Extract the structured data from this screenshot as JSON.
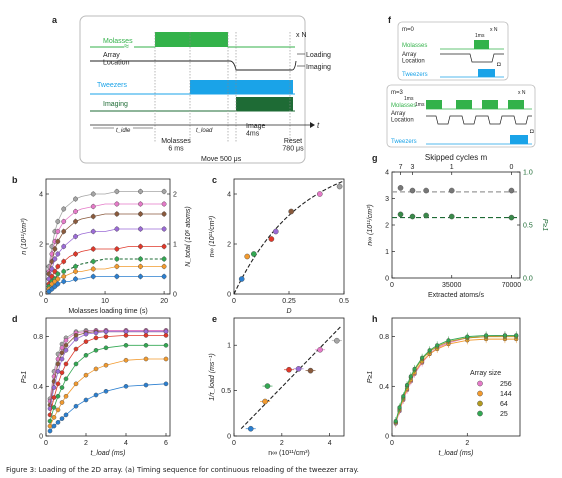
{
  "caption": "Figure 3: Loading of the 2D array. (a) Timing sequence for continuous reloading of the tweezer array.",
  "colors": {
    "green": "#33b24a",
    "darkgreen": "#1e6b35",
    "cyan": "#1aa3e8",
    "gray": "#9a9a9a",
    "black": "#222222",
    "series": [
      "#a5a5a5",
      "#e57ac8",
      "#8a5a3c",
      "#9b6bd6",
      "#e0382a",
      "#33a853",
      "#f29a2e",
      "#2b7fd0"
    ]
  },
  "panel_labels": {
    "a": "a",
    "b": "b",
    "c": "c",
    "d": "d",
    "e": "e",
    "f": "f",
    "g": "g",
    "h": "h"
  },
  "panel_a": {
    "rows": [
      "Molasses",
      "Array\nLocation",
      "Tweezers",
      "Imaging"
    ],
    "right_labels": [
      "x N",
      "Loading",
      "Imaging"
    ],
    "t_idle": "t_idle",
    "t_load": "t_load",
    "t_axis": "t",
    "molasses": "Molasses\n6 ms",
    "image": "Image\n4ms",
    "move": "Move 500 μs",
    "reset": "Reset\n780 μs"
  },
  "panel_f": {
    "m0_label": "m=0",
    "m3_label": "m=3",
    "rows": [
      "Molasses",
      "Array\nLocation",
      "Tweezers"
    ],
    "pulse": "1ms",
    "repeat": "x N"
  },
  "chart_data": [
    {
      "panel": "b",
      "type": "line",
      "xlabel": "Molasses loading time (s)",
      "ylabel": "n (10¹¹/cm³)",
      "y2label": "N_total (10⁶ atoms)",
      "xlim": [
        0,
        21
      ],
      "ylim": [
        0,
        4.6
      ],
      "y2lim": [
        0,
        2.3
      ],
      "xticks": [
        0,
        10,
        20
      ],
      "yticks": [
        0,
        2,
        4
      ],
      "y2ticks": [
        0,
        1,
        2
      ],
      "x": [
        0.5,
        1,
        1.5,
        2,
        3,
        4,
        5,
        6,
        8,
        10,
        12,
        14,
        16,
        18,
        20
      ],
      "series": [
        {
          "values": [
            1.1,
            1.9,
            2.5,
            2.9,
            3.4,
            3.6,
            3.8,
            3.9,
            4.0,
            4.0,
            4.1,
            4.1,
            4.1,
            4.1,
            4.1
          ]
        },
        {
          "values": [
            0.9,
            1.6,
            2.1,
            2.5,
            2.9,
            3.1,
            3.3,
            3.4,
            3.5,
            3.6,
            3.6,
            3.6,
            3.6,
            3.6,
            3.6
          ]
        },
        {
          "values": [
            0.8,
            1.3,
            1.8,
            2.1,
            2.5,
            2.7,
            2.9,
            3.0,
            3.1,
            3.2,
            3.2,
            3.2,
            3.2,
            3.2,
            3.2
          ]
        },
        {
          "values": [
            0.6,
            1.0,
            1.4,
            1.6,
            1.9,
            2.1,
            2.3,
            2.4,
            2.5,
            2.5,
            2.6,
            2.6,
            2.6,
            2.6,
            2.6
          ]
        },
        {
          "values": [
            0.4,
            0.7,
            0.9,
            1.1,
            1.3,
            1.5,
            1.6,
            1.7,
            1.8,
            1.8,
            1.8,
            1.9,
            1.9,
            1.9,
            1.9
          ]
        },
        {
          "values": [
            0.3,
            0.5,
            0.6,
            0.8,
            0.9,
            1.0,
            1.1,
            1.2,
            1.3,
            1.4,
            1.4,
            1.4,
            1.4,
            1.4,
            1.4
          ],
          "dashed": true
        },
        {
          "values": [
            0.2,
            0.4,
            0.5,
            0.6,
            0.7,
            0.8,
            0.9,
            0.9,
            1.0,
            1.0,
            1.1,
            1.1,
            1.1,
            1.1,
            1.1
          ]
        },
        {
          "values": [
            0.1,
            0.2,
            0.3,
            0.4,
            0.5,
            0.5,
            0.6,
            0.6,
            0.7,
            0.7,
            0.7,
            0.7,
            0.7,
            0.7,
            0.7
          ]
        }
      ]
    },
    {
      "panel": "c",
      "type": "scatter",
      "xlabel": "D",
      "ylabel": "n∞ (10¹¹/cm³)",
      "xlim": [
        0,
        0.5
      ],
      "ylim": [
        0,
        4.6
      ],
      "xticks": [
        0,
        0.25,
        0.5
      ],
      "yticks": [
        0,
        2,
        4
      ],
      "points": [
        {
          "x": 0.035,
          "y": 0.6,
          "c": 7
        },
        {
          "x": 0.06,
          "y": 1.5,
          "c": 6
        },
        {
          "x": 0.09,
          "y": 1.6,
          "c": 5
        },
        {
          "x": 0.17,
          "y": 2.2,
          "c": 4
        },
        {
          "x": 0.19,
          "y": 2.5,
          "c": 3
        },
        {
          "x": 0.26,
          "y": 3.3,
          "c": 2
        },
        {
          "x": 0.39,
          "y": 4.0,
          "c": 1
        },
        {
          "x": 0.48,
          "y": 4.3,
          "c": 0
        }
      ],
      "fit": {
        "amp": 5.6,
        "rate": 3.3
      }
    },
    {
      "panel": "d",
      "type": "line",
      "xlabel": "t_load (ms)",
      "ylabel": "P≥1",
      "xlim": [
        0,
        6.2
      ],
      "ylim": [
        0,
        0.95
      ],
      "xticks": [
        0,
        2,
        4,
        6
      ],
      "yticks": [
        0.0,
        0.4,
        0.8
      ],
      "x": [
        0.2,
        0.4,
        0.6,
        0.8,
        1.0,
        1.5,
        2.0,
        2.5,
        3.0,
        4.0,
        5.0,
        6.0
      ],
      "series": [
        {
          "values": [
            0.3,
            0.52,
            0.66,
            0.74,
            0.79,
            0.84,
            0.85,
            0.85,
            0.85,
            0.85,
            0.85,
            0.85
          ]
        },
        {
          "values": [
            0.28,
            0.48,
            0.62,
            0.71,
            0.77,
            0.83,
            0.84,
            0.85,
            0.85,
            0.85,
            0.85,
            0.85
          ]
        },
        {
          "values": [
            0.25,
            0.44,
            0.58,
            0.67,
            0.73,
            0.81,
            0.83,
            0.84,
            0.84,
            0.84,
            0.84,
            0.84
          ]
        },
        {
          "values": [
            0.22,
            0.39,
            0.52,
            0.62,
            0.69,
            0.78,
            0.82,
            0.83,
            0.84,
            0.84,
            0.84,
            0.84
          ]
        },
        {
          "values": [
            0.17,
            0.31,
            0.42,
            0.51,
            0.58,
            0.7,
            0.76,
            0.79,
            0.8,
            0.81,
            0.81,
            0.81
          ]
        },
        {
          "values": [
            0.12,
            0.23,
            0.32,
            0.39,
            0.46,
            0.58,
            0.65,
            0.69,
            0.71,
            0.73,
            0.73,
            0.73
          ]
        },
        {
          "values": [
            0.08,
            0.15,
            0.21,
            0.27,
            0.32,
            0.42,
            0.49,
            0.54,
            0.57,
            0.61,
            0.62,
            0.62
          ]
        },
        {
          "values": [
            0.04,
            0.08,
            0.11,
            0.14,
            0.17,
            0.24,
            0.29,
            0.33,
            0.36,
            0.4,
            0.41,
            0.42
          ]
        }
      ]
    },
    {
      "panel": "e",
      "type": "scatter",
      "xlabel": "n∞ (10¹¹/cm³)",
      "ylabel": "1/τ_load (ms⁻¹)",
      "xlim": [
        0,
        4.6
      ],
      "ylim": [
        0,
        1.3
      ],
      "xticks": [
        0,
        2,
        4
      ],
      "yticks": [
        0.0,
        0.5,
        1.0
      ],
      "points": [
        {
          "x": 0.7,
          "y": 0.08,
          "c": 7
        },
        {
          "x": 1.3,
          "y": 0.38,
          "c": 6
        },
        {
          "x": 1.4,
          "y": 0.55,
          "c": 5
        },
        {
          "x": 2.3,
          "y": 0.73,
          "c": 4
        },
        {
          "x": 2.7,
          "y": 0.74,
          "c": 3
        },
        {
          "x": 3.2,
          "y": 0.72,
          "c": 2
        },
        {
          "x": 3.6,
          "y": 0.95,
          "c": 1
        },
        {
          "x": 4.3,
          "y": 1.05,
          "c": 0
        }
      ],
      "fit": {
        "slope": 0.27
      }
    },
    {
      "panel": "g",
      "type": "scatter",
      "title": "Skipped cycles m",
      "xlabel": "Extracted atoms/s",
      "ylabel": "n∞ (10¹¹/cm³)",
      "y2label": "P≥1",
      "xlim": [
        0,
        75000
      ],
      "ylim": [
        0,
        4
      ],
      "y2lim": [
        0,
        1
      ],
      "xticks": [
        0,
        35000,
        70000
      ],
      "yticks": [
        0,
        1,
        2,
        3,
        4
      ],
      "y2ticks": [
        0.0,
        0.5,
        1.0
      ],
      "top_ticks": [
        "7",
        "3",
        "1",
        "0"
      ],
      "top_tick_x": [
        5000,
        12000,
        35000,
        70000
      ],
      "density": {
        "x": [
          5000,
          12000,
          20000,
          35000,
          70000
        ],
        "values": [
          3.4,
          3.3,
          3.3,
          3.3,
          3.3
        ],
        "mean": 3.25
      },
      "probability": {
        "x": [
          5000,
          12000,
          20000,
          35000,
          70000
        ],
        "values": [
          0.6,
          0.58,
          0.59,
          0.58,
          0.57
        ],
        "mean": 0.57
      }
    },
    {
      "panel": "h",
      "type": "line",
      "xlabel": "t_load (ms)",
      "ylabel": "P≥1",
      "legend_title": "Array size",
      "legend_position": "right",
      "xlim": [
        0,
        3.4
      ],
      "ylim": [
        0,
        0.95
      ],
      "xticks": [
        0,
        2
      ],
      "yticks": [
        0.0,
        0.4,
        0.8
      ],
      "x": [
        0.1,
        0.2,
        0.3,
        0.4,
        0.5,
        0.6,
        0.8,
        1.0,
        1.2,
        1.5,
        2.0,
        2.5,
        3.0,
        3.3
      ],
      "series": [
        {
          "name": "256",
          "color": "#e57ac8",
          "values": [
            0.1,
            0.2,
            0.29,
            0.37,
            0.44,
            0.5,
            0.59,
            0.66,
            0.71,
            0.75,
            0.79,
            0.8,
            0.81,
            0.81
          ]
        },
        {
          "name": "144",
          "color": "#f29a2e",
          "values": [
            0.11,
            0.21,
            0.3,
            0.38,
            0.45,
            0.51,
            0.6,
            0.66,
            0.7,
            0.74,
            0.77,
            0.78,
            0.78,
            0.78
          ]
        },
        {
          "name": "64",
          "color": "#b39a20",
          "values": [
            0.11,
            0.22,
            0.31,
            0.4,
            0.47,
            0.53,
            0.62,
            0.68,
            0.72,
            0.76,
            0.79,
            0.8,
            0.8,
            0.8
          ]
        },
        {
          "name": "25",
          "color": "#33a853",
          "values": [
            0.12,
            0.23,
            0.32,
            0.41,
            0.48,
            0.54,
            0.63,
            0.69,
            0.73,
            0.77,
            0.8,
            0.81,
            0.81,
            0.81
          ]
        }
      ]
    }
  ]
}
